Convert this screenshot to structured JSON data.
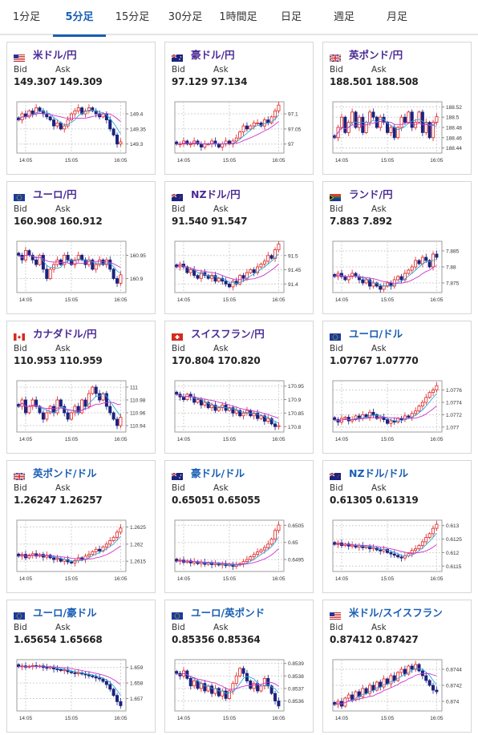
{
  "tabs": [
    {
      "label": "1分足",
      "active": false
    },
    {
      "label": "5分足",
      "active": true
    },
    {
      "label": "15分足",
      "active": false
    },
    {
      "label": "30分足",
      "active": false
    },
    {
      "label": "1時間足",
      "active": false
    },
    {
      "label": "日足",
      "active": false
    },
    {
      "label": "週足",
      "active": false
    },
    {
      "label": "月足",
      "active": false
    }
  ],
  "labels": {
    "bid": "Bid",
    "ask": "Ask"
  },
  "colors": {
    "up": "#e02020",
    "down": "#1a237e",
    "ma_fast": "#29a8e0",
    "ma_slow": "#cc33cc",
    "tab_active": "#1a5fb4",
    "pair_purple": "#4b2a96",
    "pair_blue": "#1a5fb4"
  },
  "cards": [
    {
      "pair": "米ドル/円",
      "flag": "us-flag",
      "pair_color": "purple",
      "bid": "149.307",
      "ask": "149.309",
      "chart_data": {
        "type": "candlestick",
        "y_ticks": [
          "149.4",
          "149.35",
          "149.3"
        ],
        "x_ticks": [
          "14:05",
          "15:05",
          "16:05"
        ],
        "ylim": [
          149.27,
          149.44
        ],
        "closes": [
          149.38,
          149.4,
          149.39,
          149.41,
          149.4,
          149.42,
          149.41,
          149.4,
          149.39,
          149.38,
          149.36,
          149.37,
          149.35,
          149.36,
          149.38,
          149.4,
          149.41,
          149.42,
          149.4,
          149.41,
          149.42,
          149.41,
          149.4,
          149.39,
          149.4,
          149.38,
          149.35,
          149.33,
          149.3,
          149.307
        ]
      }
    },
    {
      "pair": "豪ドル/円",
      "flag": "au-flag",
      "pair_color": "purple",
      "bid": "97.129",
      "ask": "97.134",
      "chart_data": {
        "type": "candlestick",
        "y_ticks": [
          "97.1",
          "97.05",
          "97"
        ],
        "x_ticks": [
          "14:05",
          "15:05",
          "16:05"
        ],
        "ylim": [
          96.97,
          97.14
        ],
        "closes": [
          97.0,
          97.0,
          97.01,
          97.0,
          97.0,
          97.01,
          97.0,
          96.99,
          97.0,
          97.0,
          97.01,
          97.0,
          96.99,
          97.0,
          97.01,
          97.0,
          97.01,
          97.02,
          97.04,
          97.06,
          97.05,
          97.06,
          97.07,
          97.07,
          97.06,
          97.08,
          97.07,
          97.09,
          97.11,
          97.129
        ]
      }
    },
    {
      "pair": "英ポンド/円",
      "flag": "uk-flag",
      "pair_color": "purple",
      "bid": "188.501",
      "ask": "188.508",
      "chart_data": {
        "type": "candlestick",
        "y_ticks": [
          "188.52",
          "188.5",
          "188.48",
          "188.46",
          "188.44"
        ],
        "x_ticks": [
          "14:05",
          "15:05",
          "16:05"
        ],
        "ylim": [
          188.43,
          188.53
        ],
        "closes": [
          188.46,
          188.48,
          188.5,
          188.47,
          188.49,
          188.51,
          188.48,
          188.5,
          188.47,
          188.49,
          188.51,
          188.5,
          188.48,
          188.5,
          188.49,
          188.47,
          188.48,
          188.46,
          188.48,
          188.5,
          188.49,
          188.51,
          188.48,
          188.49,
          188.51,
          188.47,
          188.49,
          188.46,
          188.49,
          188.501
        ]
      }
    },
    {
      "pair": "ユーロ/円",
      "flag": "eu-flag",
      "pair_color": "purple",
      "bid": "160.908",
      "ask": "160.912",
      "chart_data": {
        "type": "candlestick",
        "y_ticks": [
          "160.95",
          "160.9"
        ],
        "x_ticks": [
          "14:05",
          "15:05",
          "16:05"
        ],
        "ylim": [
          160.87,
          160.98
        ],
        "closes": [
          160.95,
          160.94,
          160.96,
          160.95,
          160.94,
          160.93,
          160.95,
          160.92,
          160.9,
          160.92,
          160.93,
          160.94,
          160.93,
          160.95,
          160.94,
          160.93,
          160.94,
          160.95,
          160.94,
          160.93,
          160.94,
          160.92,
          160.93,
          160.94,
          160.93,
          160.94,
          160.92,
          160.9,
          160.89,
          160.908
        ]
      }
    },
    {
      "pair": "NZドル/円",
      "flag": "nz-flag",
      "pair_color": "purple",
      "bid": "91.540",
      "ask": "91.547",
      "chart_data": {
        "type": "candlestick",
        "y_ticks": [
          "91.5",
          "91.45",
          "91.4"
        ],
        "x_ticks": [
          "14:05",
          "15:05",
          "16:05"
        ],
        "ylim": [
          91.37,
          91.55
        ],
        "closes": [
          91.46,
          91.47,
          91.46,
          91.44,
          91.45,
          91.43,
          91.42,
          91.44,
          91.43,
          91.42,
          91.43,
          91.41,
          91.42,
          91.41,
          91.4,
          91.39,
          91.41,
          91.4,
          91.43,
          91.42,
          91.44,
          91.45,
          91.44,
          91.46,
          91.47,
          91.48,
          91.5,
          91.49,
          91.52,
          91.54
        ]
      }
    },
    {
      "pair": "ランド/円",
      "flag": "za-flag",
      "pair_color": "purple",
      "bid": "7.883",
      "ask": "7.892",
      "chart_data": {
        "type": "candlestick",
        "y_ticks": [
          "7.885",
          "7.88",
          "7.875"
        ],
        "x_ticks": [
          "14:05",
          "15:05",
          "16:05"
        ],
        "ylim": [
          7.872,
          7.888
        ],
        "closes": [
          7.877,
          7.878,
          7.877,
          7.876,
          7.877,
          7.878,
          7.877,
          7.876,
          7.875,
          7.876,
          7.874,
          7.875,
          7.874,
          7.873,
          7.874,
          7.875,
          7.874,
          7.876,
          7.877,
          7.876,
          7.878,
          7.879,
          7.88,
          7.882,
          7.881,
          7.883,
          7.882,
          7.88,
          7.884,
          7.883
        ]
      }
    },
    {
      "pair": "カナダドル/円",
      "flag": "ca-flag",
      "pair_color": "purple",
      "bid": "110.953",
      "ask": "110.959",
      "chart_data": {
        "type": "candlestick",
        "y_ticks": [
          "111",
          "110.98",
          "110.96",
          "110.94"
        ],
        "x_ticks": [
          "14:05",
          "15:05",
          "16:05"
        ],
        "ylim": [
          110.93,
          111.01
        ],
        "closes": [
          110.97,
          110.98,
          110.96,
          110.97,
          110.98,
          110.97,
          110.96,
          110.95,
          110.96,
          110.97,
          110.96,
          110.98,
          110.97,
          110.96,
          110.95,
          110.96,
          110.97,
          110.96,
          110.98,
          110.97,
          110.99,
          111.0,
          110.99,
          110.98,
          110.99,
          110.97,
          110.96,
          110.95,
          110.94,
          110.953
        ]
      }
    },
    {
      "pair": "スイスフラン/円",
      "flag": "ch-flag",
      "pair_color": "purple",
      "bid": "170.804",
      "ask": "170.820",
      "chart_data": {
        "type": "candlestick",
        "y_ticks": [
          "170.95",
          "170.9",
          "170.85",
          "170.8"
        ],
        "x_ticks": [
          "14:05",
          "15:05",
          "16:05"
        ],
        "ylim": [
          170.78,
          170.97
        ],
        "closes": [
          170.92,
          170.91,
          170.9,
          170.92,
          170.91,
          170.89,
          170.9,
          170.88,
          170.89,
          170.87,
          170.88,
          170.86,
          170.87,
          170.88,
          170.86,
          170.87,
          170.85,
          170.86,
          170.84,
          170.85,
          170.86,
          170.84,
          170.85,
          170.83,
          170.84,
          170.82,
          170.83,
          170.81,
          170.8,
          170.804
        ]
      }
    },
    {
      "pair": "ユーロ/ドル",
      "flag": "eu-flag",
      "pair_color": "blue",
      "bid": "1.07767",
      "ask": "1.07770",
      "chart_data": {
        "type": "candlestick",
        "y_ticks": [
          "1.0776",
          "1.0774",
          "1.0772",
          "1.077"
        ],
        "x_ticks": [
          "14:05",
          "15:05",
          "16:05"
        ],
        "ylim": [
          1.07692,
          1.07775
        ],
        "closes": [
          1.07712,
          1.07708,
          1.07714,
          1.07716,
          1.0771,
          1.07712,
          1.07718,
          1.07714,
          1.0772,
          1.07716,
          1.07724,
          1.0772,
          1.07714,
          1.07716,
          1.07712,
          1.07706,
          1.0771,
          1.07708,
          1.07714,
          1.07712,
          1.07718,
          1.07716,
          1.07722,
          1.07726,
          1.07734,
          1.0774,
          1.07748,
          1.07756,
          1.0776,
          1.07767
        ]
      }
    },
    {
      "pair": "英ポンド/ドル",
      "flag": "uk-flag",
      "pair_color": "blue",
      "bid": "1.26247",
      "ask": "1.26257",
      "chart_data": {
        "type": "candlestick",
        "y_ticks": [
          "1.2625",
          "1.262",
          "1.2615"
        ],
        "x_ticks": [
          "14:05",
          "15:05",
          "16:05"
        ],
        "ylim": [
          1.2612,
          1.2627
        ],
        "closes": [
          1.26165,
          1.2617,
          1.2616,
          1.26168,
          1.26172,
          1.26165,
          1.2617,
          1.26162,
          1.26168,
          1.2616,
          1.26155,
          1.26158,
          1.2615,
          1.26155,
          1.26148,
          1.26145,
          1.26152,
          1.2616,
          1.26155,
          1.26165,
          1.2617,
          1.26178,
          1.26185,
          1.2618,
          1.26192,
          1.262,
          1.2621,
          1.2622,
          1.26235,
          1.26247
        ]
      }
    },
    {
      "pair": "豪ドル/ドル",
      "flag": "au-flag",
      "pair_color": "blue",
      "bid": "0.65051",
      "ask": "0.65055",
      "chart_data": {
        "type": "candlestick",
        "y_ticks": [
          "0.6505",
          "0.65",
          "0.6495"
        ],
        "x_ticks": [
          "14:05",
          "15:05",
          "16:05"
        ],
        "ylim": [
          0.64915,
          0.65065
        ],
        "closes": [
          0.64945,
          0.64948,
          0.64942,
          0.64946,
          0.6494,
          0.64944,
          0.64938,
          0.64942,
          0.64936,
          0.6494,
          0.64935,
          0.64938,
          0.64934,
          0.64937,
          0.64932,
          0.64936,
          0.6493,
          0.64934,
          0.64938,
          0.64944,
          0.6495,
          0.64958,
          0.64965,
          0.64972,
          0.64978,
          0.64985,
          0.64995,
          0.6501,
          0.65035,
          0.65051
        ]
      }
    },
    {
      "pair": "NZドル/ドル",
      "flag": "nz-flag",
      "pair_color": "blue",
      "bid": "0.61305",
      "ask": "0.61319",
      "chart_data": {
        "type": "candlestick",
        "y_ticks": [
          "0.613",
          "0.6125",
          "0.612",
          "0.6115"
        ],
        "x_ticks": [
          "14:05",
          "15:05",
          "16:05"
        ],
        "ylim": [
          0.6113,
          0.6132
        ],
        "closes": [
          0.6123,
          0.61236,
          0.61226,
          0.61232,
          0.61224,
          0.61228,
          0.6122,
          0.61226,
          0.61218,
          0.61222,
          0.61214,
          0.61218,
          0.6121,
          0.61206,
          0.61212,
          0.612,
          0.61195,
          0.6119,
          0.61184,
          0.6118,
          0.61188,
          0.61196,
          0.61208,
          0.61214,
          0.61226,
          0.6124,
          0.61256,
          0.6127,
          0.6129,
          0.61305
        ]
      }
    },
    {
      "pair": "ユーロ/豪ドル",
      "flag": "eu-flag",
      "pair_color": "blue",
      "bid": "1.65654",
      "ask": "1.65668",
      "chart_data": {
        "type": "candlestick",
        "y_ticks": [
          "1.659",
          "1.658",
          "1.657"
        ],
        "x_ticks": [
          "14:05",
          "15:05",
          "16:05"
        ],
        "ylim": [
          1.6562,
          1.6595
        ],
        "closes": [
          1.65905,
          1.6591,
          1.65902,
          1.65908,
          1.65912,
          1.65906,
          1.6591,
          1.659,
          1.65896,
          1.65902,
          1.6589,
          1.65886,
          1.6588,
          1.65884,
          1.65872,
          1.65866,
          1.6586,
          1.65866,
          1.65858,
          1.65852,
          1.65846,
          1.6584,
          1.65832,
          1.65826,
          1.6581,
          1.6579,
          1.6576,
          1.6572,
          1.6568,
          1.65654
        ]
      }
    },
    {
      "pair": "ユーロ/英ポンド",
      "flag": "eu-flag",
      "pair_color": "blue",
      "bid": "0.85356",
      "ask": "0.85364",
      "chart_data": {
        "type": "candlestick",
        "y_ticks": [
          "0.8539",
          "0.8538",
          "0.8537",
          "0.8536"
        ],
        "x_ticks": [
          "14:05",
          "15:05",
          "16:05"
        ],
        "ylim": [
          0.85352,
          0.85393
        ],
        "closes": [
          0.85382,
          0.8538,
          0.85384,
          0.85378,
          0.85372,
          0.85376,
          0.8537,
          0.85374,
          0.85368,
          0.85372,
          0.85366,
          0.8537,
          0.85364,
          0.85368,
          0.85362,
          0.85368,
          0.85374,
          0.8538,
          0.85386,
          0.85382,
          0.85376,
          0.8537,
          0.85374,
          0.85368,
          0.85372,
          0.85378,
          0.85372,
          0.85366,
          0.8536,
          0.85356
        ]
      }
    },
    {
      "pair": "米ドル/スイスフラン",
      "flag": "us-flag",
      "pair_color": "blue",
      "bid": "0.87412",
      "ask": "0.87427",
      "chart_data": {
        "type": "candlestick",
        "y_ticks": [
          "0.8744",
          "0.8742",
          "0.874"
        ],
        "x_ticks": [
          "14:05",
          "15:05",
          "16:05"
        ],
        "ylim": [
          0.87388,
          0.87452
        ],
        "closes": [
          0.87396,
          0.874,
          0.87394,
          0.87404,
          0.87408,
          0.87402,
          0.87412,
          0.87406,
          0.87416,
          0.8741,
          0.8742,
          0.87414,
          0.87424,
          0.87418,
          0.87428,
          0.87422,
          0.87432,
          0.87426,
          0.87436,
          0.8744,
          0.87434,
          0.87444,
          0.8744,
          0.87446,
          0.87438,
          0.87432,
          0.87426,
          0.8742,
          0.87414,
          0.87412
        ]
      }
    }
  ]
}
